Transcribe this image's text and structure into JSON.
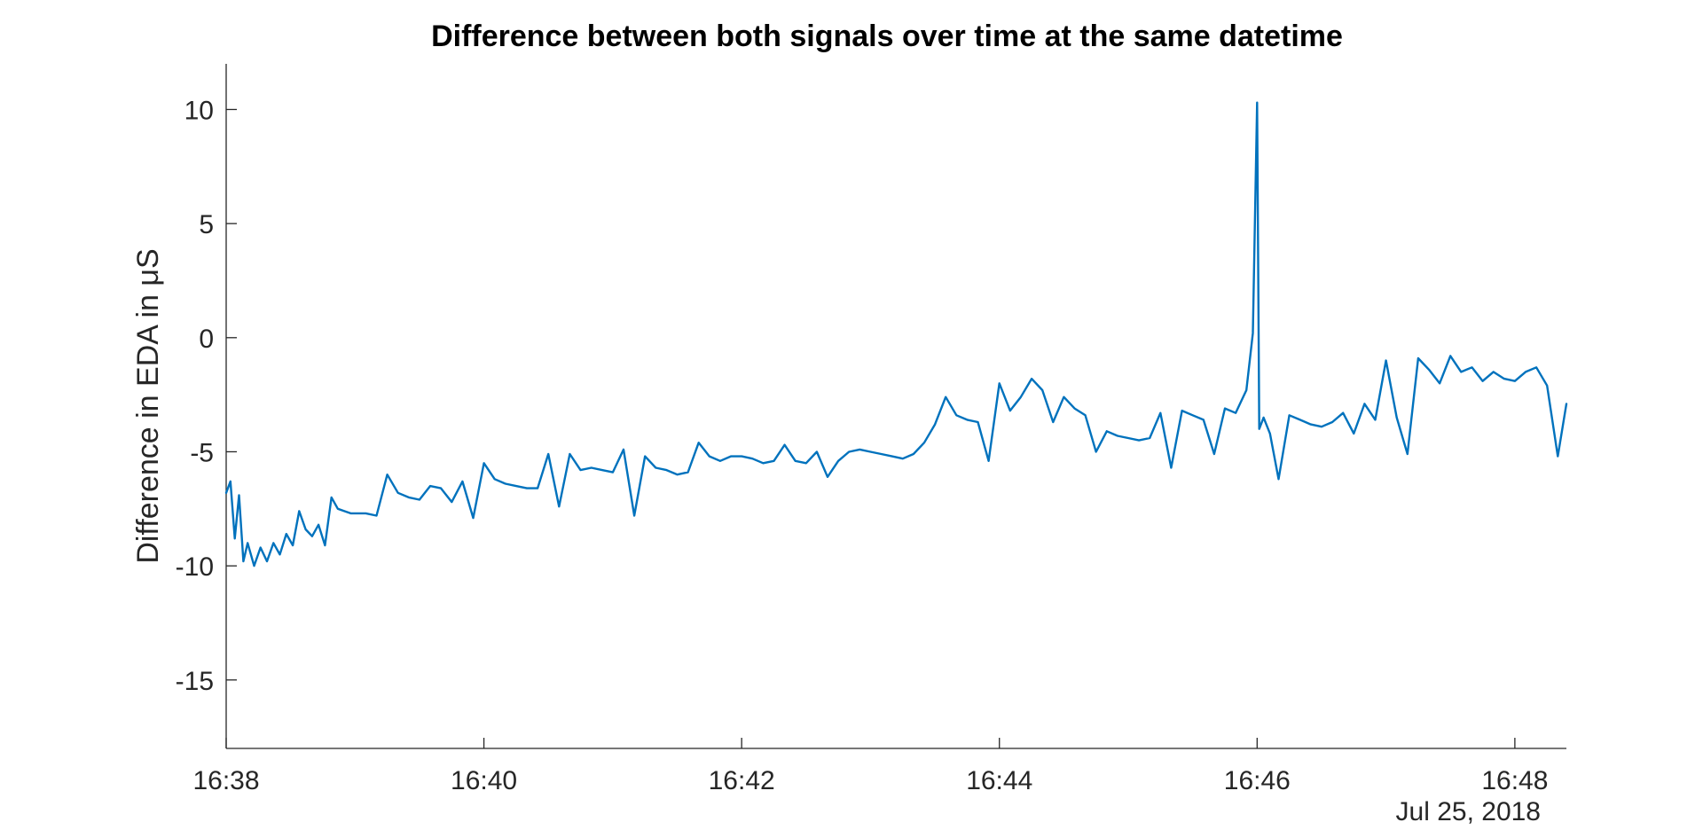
{
  "chart_data": {
    "type": "line",
    "title": "Difference between both signals over time at the same datetime",
    "xlabel": "",
    "ylabel": "Difference in EDA in μS",
    "date_label": "Jul 25, 2018",
    "x_start": "16:38:00",
    "x_end": "16:48:24",
    "xlim": [
      "16:38:00",
      "16:48:24"
    ],
    "ylim": [
      -18,
      12
    ],
    "x_ticks": [
      "16:38",
      "16:40",
      "16:42",
      "16:44",
      "16:46",
      "16:48"
    ],
    "y_ticks": [
      10,
      5,
      0,
      -5,
      -10,
      -15
    ],
    "y_tick_labels": [
      "10",
      "5",
      "0",
      "-5",
      "-10",
      "-15"
    ],
    "grid": false,
    "legend": "none",
    "series": [
      {
        "color": "#0072BD",
        "x": [
          "16:38:00",
          "16:38:02",
          "16:38:04",
          "16:38:06",
          "16:38:08",
          "16:38:10",
          "16:38:13",
          "16:38:16",
          "16:38:19",
          "16:38:22",
          "16:38:25",
          "16:38:28",
          "16:38:31",
          "16:38:34",
          "16:38:37",
          "16:38:40",
          "16:38:43",
          "16:38:46",
          "16:38:49",
          "16:38:52",
          "16:38:55",
          "16:38:58",
          "16:39:01",
          "16:39:05",
          "16:39:10",
          "16:39:15",
          "16:39:20",
          "16:39:25",
          "16:39:30",
          "16:39:35",
          "16:39:40",
          "16:39:45",
          "16:39:50",
          "16:39:55",
          "16:40:00",
          "16:40:05",
          "16:40:10",
          "16:40:15",
          "16:40:20",
          "16:40:25",
          "16:40:30",
          "16:40:35",
          "16:40:40",
          "16:40:45",
          "16:40:50",
          "16:40:55",
          "16:41:00",
          "16:41:05",
          "16:41:10",
          "16:41:15",
          "16:41:20",
          "16:41:25",
          "16:41:30",
          "16:41:35",
          "16:41:40",
          "16:41:45",
          "16:41:50",
          "16:41:55",
          "16:42:00",
          "16:42:05",
          "16:42:10",
          "16:42:15",
          "16:42:20",
          "16:42:25",
          "16:42:30",
          "16:42:35",
          "16:42:40",
          "16:42:45",
          "16:42:50",
          "16:42:55",
          "16:43:00",
          "16:43:05",
          "16:43:10",
          "16:43:15",
          "16:43:20",
          "16:43:25",
          "16:43:30",
          "16:43:35",
          "16:43:40",
          "16:43:45",
          "16:43:50",
          "16:43:55",
          "16:44:00",
          "16:44:05",
          "16:44:10",
          "16:44:15",
          "16:44:20",
          "16:44:25",
          "16:44:30",
          "16:44:35",
          "16:44:40",
          "16:44:45",
          "16:44:50",
          "16:44:55",
          "16:45:00",
          "16:45:05",
          "16:45:10",
          "16:45:15",
          "16:45:20",
          "16:45:25",
          "16:45:30",
          "16:45:35",
          "16:45:40",
          "16:45:45",
          "16:45:50",
          "16:45:55",
          "16:45:58",
          "16:46:00",
          "16:46:01",
          "16:46:03",
          "16:46:06",
          "16:46:10",
          "16:46:15",
          "16:46:20",
          "16:46:25",
          "16:46:30",
          "16:46:35",
          "16:46:40",
          "16:46:45",
          "16:46:50",
          "16:46:55",
          "16:47:00",
          "16:47:05",
          "16:47:10",
          "16:47:15",
          "16:47:20",
          "16:47:25",
          "16:47:30",
          "16:47:35",
          "16:47:40",
          "16:47:45",
          "16:47:50",
          "16:47:55",
          "16:48:00",
          "16:48:05",
          "16:48:10",
          "16:48:15",
          "16:48:20",
          "16:48:24"
        ],
        "values": [
          -6.8,
          -6.3,
          -8.8,
          -6.9,
          -9.8,
          -9.0,
          -10.0,
          -9.2,
          -9.8,
          -9.0,
          -9.5,
          -8.6,
          -9.1,
          -7.6,
          -8.4,
          -8.7,
          -8.2,
          -9.1,
          -7.0,
          -7.5,
          -7.6,
          -7.7,
          -7.7,
          -7.7,
          -7.8,
          -6.0,
          -6.8,
          -7.0,
          -7.1,
          -6.5,
          -6.6,
          -7.2,
          -6.3,
          -7.9,
          -5.5,
          -6.2,
          -6.4,
          -6.5,
          -6.6,
          -6.6,
          -5.1,
          -7.4,
          -5.1,
          -5.8,
          -5.7,
          -5.8,
          -5.9,
          -4.9,
          -7.8,
          -5.2,
          -5.7,
          -5.8,
          -6.0,
          -5.9,
          -4.6,
          -5.2,
          -5.4,
          -5.2,
          -5.2,
          -5.3,
          -5.5,
          -5.4,
          -4.7,
          -5.4,
          -5.5,
          -5.0,
          -6.1,
          -5.4,
          -5.0,
          -4.9,
          -5.0,
          -5.1,
          -5.2,
          -5.3,
          -5.1,
          -4.6,
          -3.8,
          -2.6,
          -3.4,
          -3.6,
          -3.7,
          -5.4,
          -2.0,
          -3.2,
          -2.6,
          -1.8,
          -2.3,
          -3.7,
          -2.6,
          -3.1,
          -3.4,
          -5.0,
          -4.1,
          -4.3,
          -4.4,
          -4.5,
          -4.4,
          -3.3,
          -5.7,
          -3.2,
          -3.4,
          -3.6,
          -5.1,
          -3.1,
          -3.3,
          -2.3,
          0.2,
          10.3,
          -4.0,
          -3.5,
          -4.2,
          -6.2,
          -3.4,
          -3.6,
          -3.8,
          -3.9,
          -3.7,
          -3.3,
          -4.2,
          -2.9,
          -3.6,
          -1.0,
          -3.5,
          -5.1,
          -0.9,
          -1.4,
          -2.0,
          -0.8,
          -1.5,
          -1.3,
          -1.9,
          -1.5,
          -1.8,
          -1.9,
          -1.5,
          -1.3,
          -2.1,
          -5.2,
          -2.9
        ]
      }
    ]
  }
}
